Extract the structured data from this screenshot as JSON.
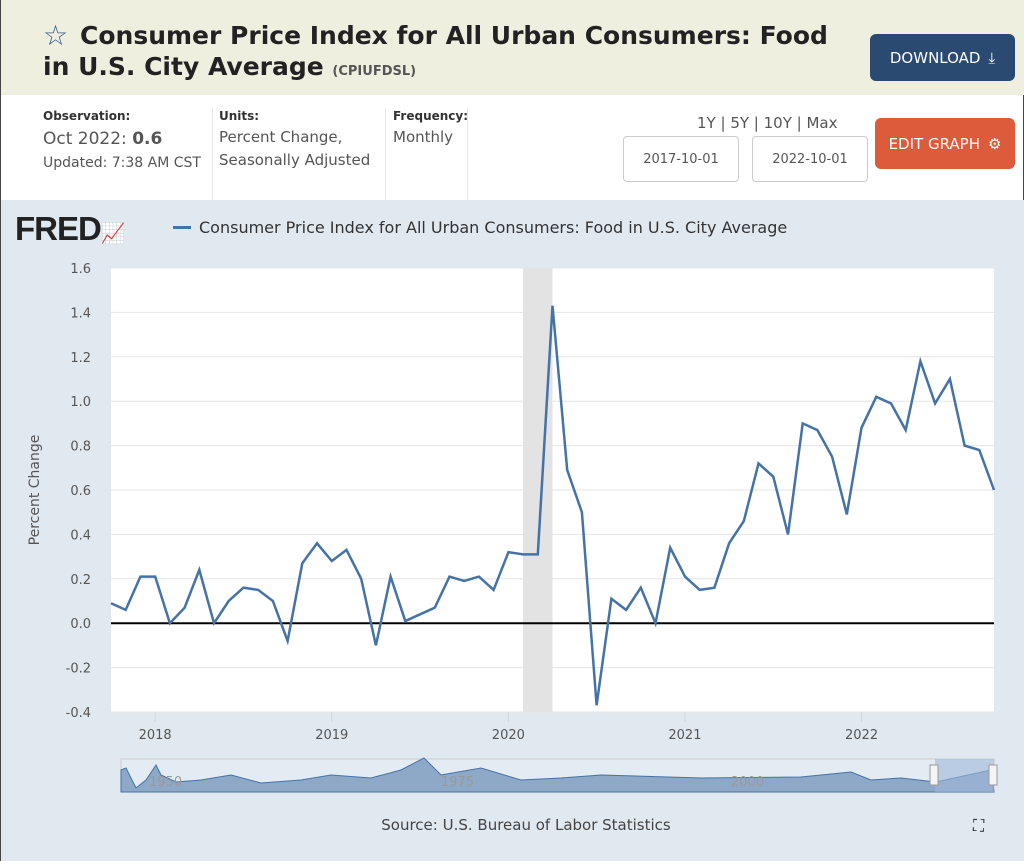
{
  "header": {
    "title": "Consumer Price Index for All Urban Consumers: Food in U.S. City Average",
    "series_id": "(CPIUFDSL)",
    "download_label": "DOWNLOAD"
  },
  "info": {
    "observation_label": "Observation:",
    "observation_date": "Oct 2022:",
    "observation_value": "0.6",
    "updated": "Updated: 7:38 AM CST",
    "units_label": "Units:",
    "units_line1": "Percent Change,",
    "units_line2": "Seasonally Adjusted",
    "frequency_label": "Frequency:",
    "frequency": "Monthly"
  },
  "controls": {
    "ranges": [
      "1Y",
      "5Y",
      "10Y",
      "Max"
    ],
    "start_date": "2017-10-01",
    "end_date": "2022-10-01",
    "edit_label": "EDIT GRAPH"
  },
  "logo": "FRED",
  "source": "Source: U.S. Bureau of Labor Statistics",
  "colors": {
    "line": "#4572a7",
    "download": "#2b4a72",
    "edit": "#dd5a3a"
  },
  "chart_data": {
    "type": "line",
    "title": "",
    "legend": "Consumer Price Index for All Urban Consumers: Food in U.S. City Average",
    "legend_position": "top-left",
    "ylabel": "Percent Change",
    "xlabel": "",
    "ylim": [
      -0.4,
      1.6
    ],
    "yticks": [
      "1.6",
      "1.4",
      "1.2",
      "1.0",
      "0.8",
      "0.6",
      "0.4",
      "0.2",
      "0.0",
      "-0.2",
      "-0.4"
    ],
    "xticks": [
      "2018",
      "2019",
      "2020",
      "2021",
      "2022"
    ],
    "start": "2017-10",
    "frequency": "monthly",
    "recession": [
      "2020-02",
      "2020-04"
    ],
    "series": [
      {
        "name": "CPIUFDSL",
        "values": [
          0.09,
          0.06,
          0.21,
          0.21,
          0.0,
          0.07,
          0.24,
          0.0,
          0.1,
          0.16,
          0.15,
          0.1,
          -0.08,
          0.27,
          0.36,
          0.28,
          0.33,
          0.2,
          -0.1,
          0.21,
          0.01,
          0.04,
          0.07,
          0.21,
          0.19,
          0.21,
          0.15,
          0.32,
          0.31,
          0.31,
          1.43,
          0.69,
          0.5,
          -0.37,
          0.11,
          0.06,
          0.16,
          0.0,
          0.34,
          0.21,
          0.15,
          0.16,
          0.36,
          0.46,
          0.72,
          0.66,
          0.4,
          0.9,
          0.87,
          0.75,
          0.49,
          0.88,
          1.02,
          0.99,
          0.87,
          1.18,
          0.99,
          1.1,
          0.8,
          0.78,
          0.6
        ]
      }
    ],
    "navigator_labels": [
      "1950",
      "1975",
      "2000"
    ]
  }
}
